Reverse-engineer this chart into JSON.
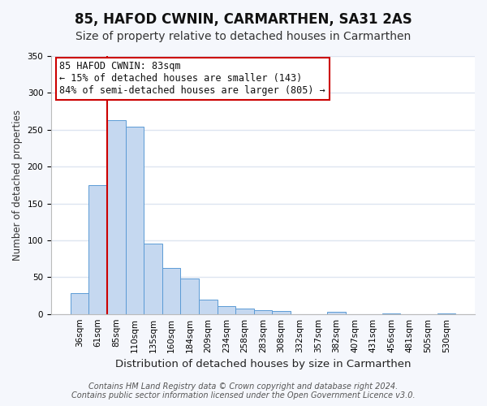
{
  "title": "85, HAFOD CWNIN, CARMARTHEN, SA31 2AS",
  "subtitle": "Size of property relative to detached houses in Carmarthen",
  "xlabel": "Distribution of detached houses by size in Carmarthen",
  "ylabel": "Number of detached properties",
  "bin_labels": [
    "36sqm",
    "61sqm",
    "85sqm",
    "110sqm",
    "135sqm",
    "160sqm",
    "184sqm",
    "209sqm",
    "234sqm",
    "258sqm",
    "283sqm",
    "308sqm",
    "332sqm",
    "357sqm",
    "382sqm",
    "407sqm",
    "431sqm",
    "456sqm",
    "481sqm",
    "505sqm",
    "530sqm"
  ],
  "bar_heights": [
    28,
    175,
    263,
    254,
    95,
    62,
    48,
    20,
    11,
    7,
    5,
    4,
    0,
    0,
    3,
    0,
    0,
    1,
    0,
    0,
    1
  ],
  "bar_color": "#c5d8f0",
  "bar_edge_color": "#5b9bd5",
  "vline_x_index": 2,
  "vline_color": "#cc0000",
  "ylim": [
    0,
    350
  ],
  "yticks": [
    0,
    50,
    100,
    150,
    200,
    250,
    300,
    350
  ],
  "annotation_title": "85 HAFOD CWNIN: 83sqm",
  "annotation_line1": "← 15% of detached houses are smaller (143)",
  "annotation_line2": "84% of semi-detached houses are larger (805) →",
  "annotation_box_color": "#ffffff",
  "annotation_box_edge": "#cc0000",
  "footer1": "Contains HM Land Registry data © Crown copyright and database right 2024.",
  "footer2": "Contains public sector information licensed under the Open Government Licence v3.0.",
  "fig_background_color": "#f5f7fc",
  "plot_background": "#ffffff",
  "grid_color": "#dde5f0",
  "title_fontsize": 12,
  "subtitle_fontsize": 10,
  "xlabel_fontsize": 9.5,
  "ylabel_fontsize": 8.5,
  "tick_fontsize": 7.5,
  "footer_fontsize": 7
}
